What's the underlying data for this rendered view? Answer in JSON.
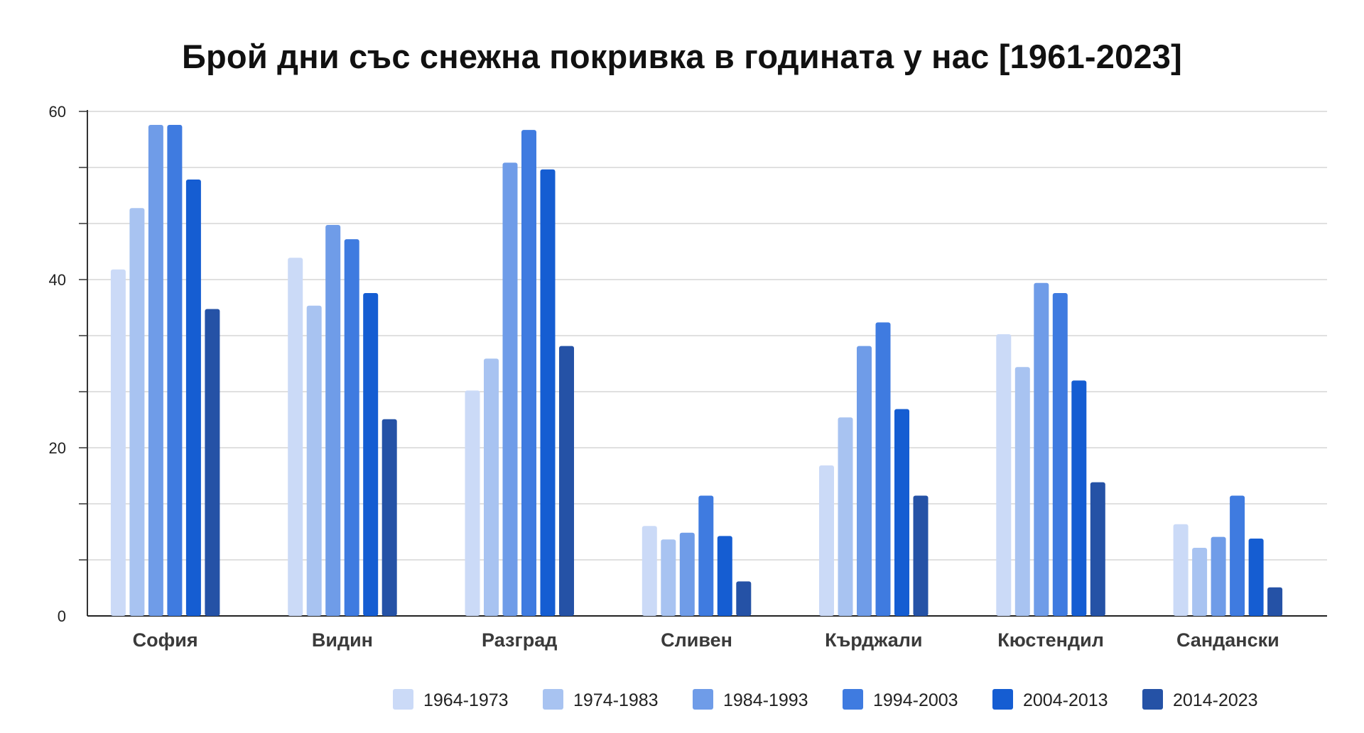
{
  "chart_data": {
    "type": "bar",
    "title": "Брой дни със снежна покривка в годината у нас [1961-2023]",
    "xlabel": "",
    "ylabel": "",
    "ylim": [
      0,
      60
    ],
    "yticks": [
      "0",
      "20",
      "40",
      "60"
    ],
    "grid": true,
    "legend_position": "bottom",
    "categories": [
      "София",
      "Видин",
      "Разград",
      "Сливен",
      "Кърджали",
      "Кюстендил",
      "Сандански"
    ],
    "series": [
      {
        "name": "1964-1973",
        "color": "#cbdaf7",
        "values": [
          41.2,
          42.6,
          26.8,
          10.7,
          17.9,
          33.5,
          10.9
        ]
      },
      {
        "name": "1974-1983",
        "color": "#a8c3f1",
        "values": [
          48.5,
          36.9,
          30.6,
          9.1,
          23.6,
          29.6,
          8.1
        ]
      },
      {
        "name": "1984-1993",
        "color": "#6f9ce8",
        "values": [
          58.4,
          46.5,
          53.9,
          9.9,
          32.1,
          39.6,
          9.4
        ]
      },
      {
        "name": "1994-2003",
        "color": "#3f7be0",
        "values": [
          58.4,
          44.8,
          57.8,
          14.3,
          34.9,
          38.4,
          14.3
        ]
      },
      {
        "name": "2004-2013",
        "color": "#155dd2",
        "values": [
          51.9,
          38.4,
          53.1,
          9.5,
          24.6,
          28.0,
          9.2
        ]
      },
      {
        "name": "2014-2023",
        "color": "#2552a6",
        "values": [
          36.5,
          23.4,
          32.1,
          4.1,
          14.3,
          15.9,
          3.4
        ]
      }
    ]
  }
}
